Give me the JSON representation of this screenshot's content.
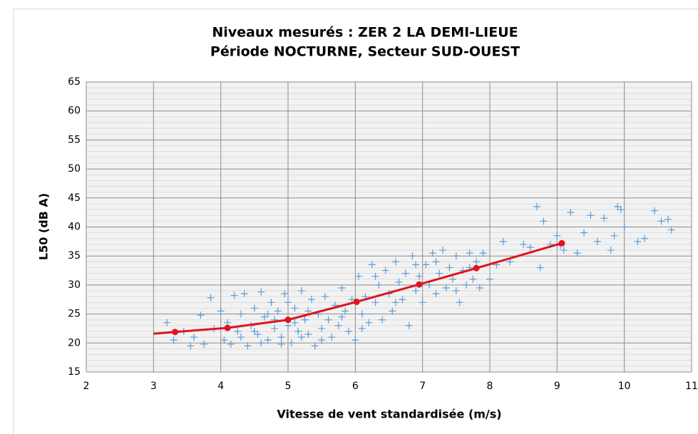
{
  "chart_data": {
    "type": "scatter",
    "title": "Niveaux mesurés : ZER 2 LA DEMI-LIEUE",
    "subtitle": "Période NOCTURNE, Secteur SUD-OUEST",
    "x_label": "Vitesse de vent standardisée (m/s)",
    "y_label": "L50 (dB A)",
    "xlim": [
      2,
      11
    ],
    "xticks": [
      2,
      3,
      4,
      5,
      6,
      7,
      8,
      9,
      10,
      11
    ],
    "ylim": [
      15,
      65
    ],
    "yticks": [
      15,
      20,
      25,
      30,
      35,
      40,
      45,
      50,
      55,
      60,
      65
    ],
    "y_minor_ticks": [
      16,
      17,
      18,
      19,
      21,
      22,
      23,
      24,
      26,
      27,
      28,
      29,
      31,
      32,
      33,
      34,
      36,
      37,
      38,
      39,
      41,
      42,
      43,
      44,
      46,
      47,
      48,
      49,
      51,
      52,
      53,
      54,
      56,
      57,
      58,
      59,
      61,
      62,
      63,
      64
    ],
    "grid": true,
    "series": [
      {
        "mode": "markers",
        "marker": "plus",
        "color": "#5b9bd5",
        "x": [
          3.2,
          3.3,
          3.45,
          3.55,
          3.6,
          3.7,
          3.75,
          3.85,
          3.9,
          4.0,
          4.05,
          4.1,
          4.15,
          4.2,
          4.25,
          4.3,
          4.35,
          4.4,
          4.45,
          4.5,
          4.55,
          4.6,
          4.65,
          4.7,
          4.75,
          4.8,
          4.85,
          4.9,
          4.95,
          5.0,
          5.05,
          5.1,
          5.15,
          5.2,
          5.25,
          5.3,
          5.35,
          5.4,
          5.45,
          5.5,
          5.55,
          5.6,
          5.65,
          5.7,
          5.75,
          5.8,
          5.85,
          5.9,
          5.95,
          6.0,
          6.05,
          6.1,
          6.15,
          6.2,
          6.25,
          6.3,
          6.35,
          6.4,
          6.45,
          6.5,
          6.55,
          6.6,
          6.65,
          6.7,
          6.75,
          6.8,
          6.85,
          6.9,
          6.95,
          7.0,
          7.05,
          7.1,
          7.15,
          7.2,
          7.25,
          7.3,
          7.35,
          7.4,
          7.45,
          7.5,
          7.55,
          7.6,
          7.65,
          7.7,
          7.75,
          7.8,
          7.85,
          7.9,
          8.0,
          8.1,
          8.2,
          8.3,
          8.6,
          8.7,
          8.8,
          8.9,
          9.0,
          9.1,
          9.2,
          9.3,
          9.4,
          9.5,
          9.6,
          9.7,
          9.8,
          9.85,
          9.9,
          9.95,
          10.0,
          10.2,
          10.3,
          10.45,
          10.55,
          10.65,
          10.7,
          4.5,
          4.7,
          4.9,
          5.1,
          5.3,
          5.5,
          5.0,
          5.2,
          4.8,
          6.3,
          6.6,
          6.9,
          7.2,
          7.5,
          7.7,
          5.8,
          6.1,
          4.3,
          4.6,
          8.75,
          8.5,
          9.05
        ],
        "values": [
          23.5,
          20.5,
          22,
          19.5,
          21,
          24.8,
          19.8,
          27.8,
          22.5,
          25.5,
          20.5,
          23.5,
          19.8,
          28.2,
          22,
          25,
          28.5,
          19.5,
          23,
          26,
          21.5,
          28.8,
          24.5,
          20.5,
          27,
          22.5,
          25.5,
          21,
          28.5,
          23,
          20,
          26,
          22,
          29,
          24,
          21.5,
          27.5,
          19.5,
          25,
          22.5,
          28,
          24,
          21,
          26.5,
          23,
          29.5,
          25.5,
          22,
          27.5,
          20.5,
          31.5,
          25,
          28,
          23.5,
          33.5,
          27,
          30,
          24,
          32.5,
          28.5,
          25.5,
          34,
          30.5,
          27.5,
          32,
          23,
          35,
          29,
          31.5,
          27,
          33.5,
          30,
          35.5,
          28.5,
          32,
          36,
          29.5,
          33,
          31,
          35,
          27,
          32.5,
          30,
          35.5,
          31,
          34,
          29.5,
          35.5,
          31,
          33.5,
          37.5,
          34,
          36.5,
          43.5,
          41,
          37,
          38.5,
          36,
          42.5,
          35.5,
          39,
          42,
          37.5,
          41.5,
          36,
          38.5,
          43.5,
          43,
          40,
          37.5,
          38,
          42.8,
          41,
          41.3,
          39.5,
          22,
          25,
          19.8,
          23.5,
          25.5,
          20.5,
          27,
          21,
          24,
          31.5,
          27,
          33.5,
          34,
          29,
          33,
          24.5,
          22.5,
          21,
          20,
          33,
          37,
          36.8
        ]
      },
      {
        "mode": "line",
        "color": "#e0141e",
        "x": [
          3,
          3.32,
          4.1,
          5,
          6.02,
          6.95,
          7.8,
          9.07
        ],
        "values": [
          21.6,
          21.9,
          22.6,
          24,
          27.1,
          30.1,
          32.9,
          37.2
        ]
      },
      {
        "mode": "dots",
        "color": "#e0141e",
        "x": [
          3.32,
          4.1,
          5,
          6.02,
          6.95,
          7.8,
          9.07
        ],
        "values": [
          21.9,
          22.6,
          24,
          27.1,
          30.1,
          32.9,
          37.2
        ]
      }
    ]
  }
}
